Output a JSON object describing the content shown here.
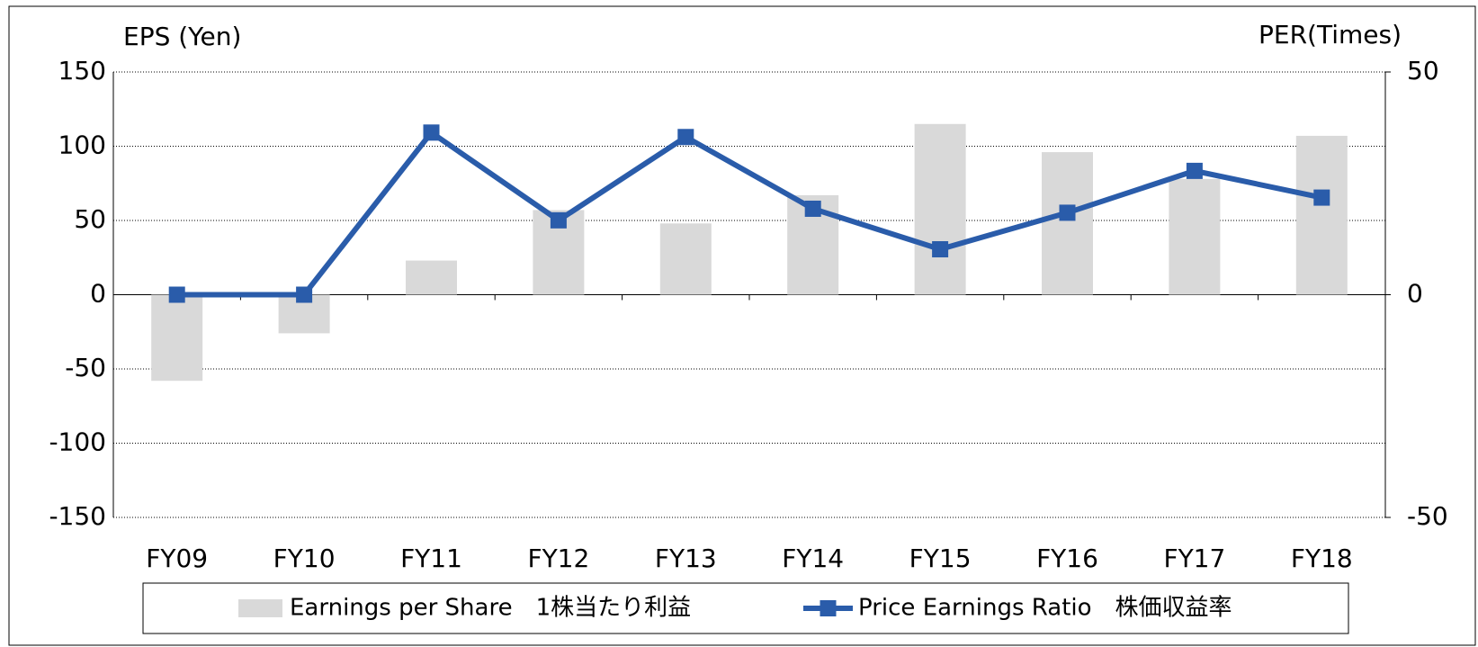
{
  "chart_data": {
    "type": "bar_line",
    "y_label": "EPS (Yen)",
    "y2_label": "PER(Times)",
    "categories": [
      "FY09",
      "FY10",
      "FY11",
      "FY12",
      "FY13",
      "FY14",
      "FY15",
      "FY16",
      "FY17",
      "FY18"
    ],
    "series": [
      {
        "name": "Earnings per Share　1株当たり利益",
        "type": "bar",
        "color": "#d9d9d9",
        "axis": "y",
        "values": [
          -58,
          -26,
          23,
          57,
          48,
          67,
          115,
          96,
          78,
          107
        ]
      },
      {
        "name": "Price Earnings Ratio　株価収益率",
        "type": "line",
        "color": "#2a5caa",
        "axis": "y2",
        "values": [
          0,
          0,
          36.4,
          16.7,
          35.4,
          19.3,
          10.2,
          18.4,
          27.8,
          21.8
        ]
      }
    ],
    "ylim": [
      -150,
      150
    ],
    "yticks": [
      -150,
      -100,
      -50,
      0,
      50,
      100,
      150
    ],
    "y2lim": [
      -50,
      50
    ],
    "y2ticks": [
      -50,
      0,
      50
    ],
    "grid": true,
    "legend": "bottom"
  }
}
